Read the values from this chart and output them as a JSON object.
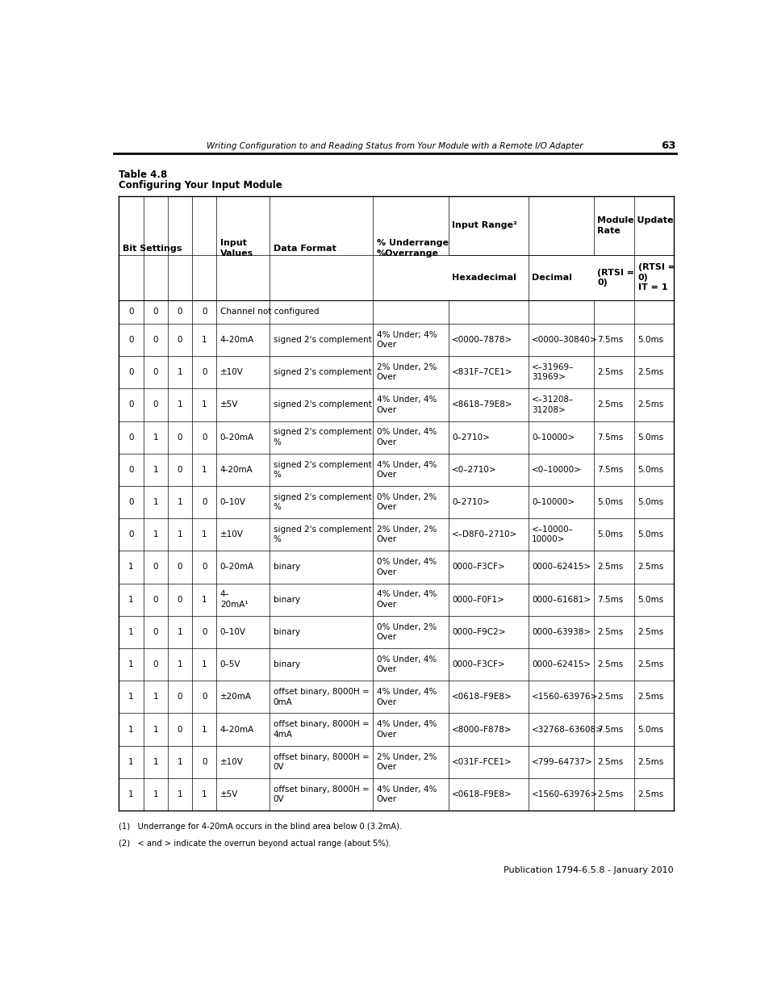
{
  "page_header": "Writing Configuration to and Reading Status from Your Module with a Remote I/O Adapter",
  "page_number": "63",
  "table_title_line1": "Table 4.8",
  "table_title_line2": "Configuring Your Input Module",
  "rows": [
    [
      "0",
      "0",
      "0",
      "0",
      "Channel not configured",
      "",
      "",
      "",
      "",
      "",
      ""
    ],
    [
      "0",
      "0",
      "0",
      "1",
      "4–20mA",
      "signed 2's complement",
      "4% Under; 4%\nOver",
      "<0000–7878>",
      "<0000–30840>",
      "7.5ms",
      "5.0ms"
    ],
    [
      "0",
      "0",
      "1",
      "0",
      "±10V",
      "signed 2's complement",
      "2% Under, 2%\nOver",
      "<831F–7CE1>",
      "<–31969–\n31969>",
      "2.5ms",
      "2.5ms"
    ],
    [
      "0",
      "0",
      "1",
      "1",
      "±5V",
      "signed 2's complement",
      "4% Under, 4%\nOver",
      "<8618–79E8>",
      "<–31208–\n31208>",
      "2.5ms",
      "2.5ms"
    ],
    [
      "0",
      "1",
      "0",
      "0",
      "0–20mA",
      "signed 2's complement\n%",
      "0% Under, 4%\nOver",
      "0–2710>",
      "0–10000>",
      "7.5ms",
      "5.0ms"
    ],
    [
      "0",
      "1",
      "0",
      "1",
      "4-20mA",
      "signed 2's complement\n%",
      "4% Under, 4%\nOver",
      "<0–2710>",
      "<0–10000>",
      "7.5ms",
      "5.0ms"
    ],
    [
      "0",
      "1",
      "1",
      "0",
      "0–10V",
      "signed 2's complement\n%",
      "0% Under, 2%\nOver",
      "0–2710>",
      "0–10000>",
      "5.0ms",
      "5.0ms"
    ],
    [
      "0",
      "1",
      "1",
      "1",
      "±10V",
      "signed 2's complement\n%",
      "2% Under, 2%\nOver",
      "<–D8F0–2710>",
      "<–10000–\n10000>",
      "5.0ms",
      "5.0ms"
    ],
    [
      "1",
      "0",
      "0",
      "0",
      "0–20mA",
      "binary",
      "0% Under, 4%\nOver",
      "0000–F3CF>",
      "0000–62415>",
      "2.5ms",
      "2.5ms"
    ],
    [
      "1",
      "0",
      "0",
      "1",
      "4–\n20mA¹",
      "binary",
      "4% Under, 4%\nOver",
      "0000–F0F1>",
      "0000–61681>",
      "7.5ms",
      "5.0ms"
    ],
    [
      "1",
      "0",
      "1",
      "0",
      "0–10V",
      "binary",
      "0% Under, 2%\nOver",
      "0000–F9C2>",
      "0000–63938>",
      "2.5ms",
      "2.5ms"
    ],
    [
      "1",
      "0",
      "1",
      "1",
      "0–5V",
      "binary",
      "0% Under, 4%\nOver",
      "0000–F3CF>",
      "0000–62415>",
      "2.5ms",
      "2.5ms"
    ],
    [
      "1",
      "1",
      "0",
      "0",
      "±20mA",
      "offset binary, 8000H =\n0mA",
      "4% Under, 4%\nOver",
      "<0618–F9E8>",
      "<1560–63976>",
      "2.5ms",
      "2.5ms"
    ],
    [
      "1",
      "1",
      "0",
      "1",
      "4–20mA",
      "offset binary, 8000H =\n4mA",
      "4% Under, 4%\nOver",
      "<8000–F878>",
      "<32768–63608>",
      "7.5ms",
      "5.0ms"
    ],
    [
      "1",
      "1",
      "1",
      "0",
      "±10V",
      "offset binary, 8000H =\n0V",
      "2% Under, 2%\nOver",
      "<031F–FCE1>",
      "<799–64737>",
      "2.5ms",
      "2.5ms"
    ],
    [
      "1",
      "1",
      "1",
      "1",
      "±5V",
      "offset binary, 8000H =\n0V",
      "4% Under, 4%\nOver",
      "<0618–F9E8>",
      "<1560–63976>",
      "2.5ms",
      "2.5ms"
    ]
  ],
  "footnotes": [
    "(1)   Underrange for 4-20mA occurs in the blind area below 0 (3.2mA).",
    "(2)   < and > indicate the overrun beyond actual range (about 5%)."
  ],
  "footer_text": "Publication 1794-6.5.8 - January 2010",
  "bg_color": "#ffffff",
  "text_color": "#000000"
}
